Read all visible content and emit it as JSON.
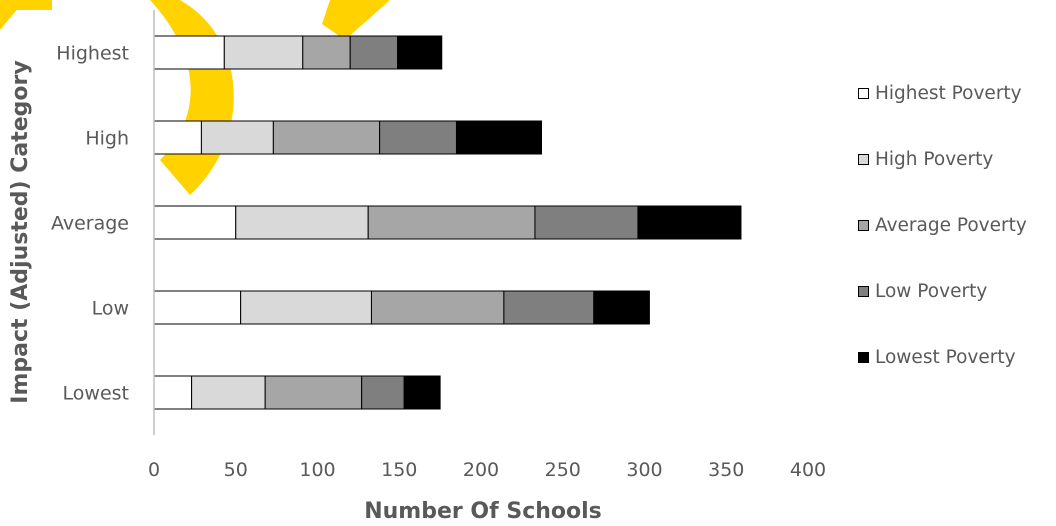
{
  "chart_data": {
    "type": "bar",
    "orientation": "horizontal",
    "stacked": true,
    "xlabel": "Number Of Schools",
    "ylabel": "Impact (Adjusted) Category",
    "xlim": [
      0,
      400
    ],
    "xticks": [
      "0",
      "50",
      "100",
      "150",
      "200",
      "250",
      "300",
      "350",
      "400"
    ],
    "categories": [
      "Highest",
      "High",
      "Average",
      "Low",
      "Lowest"
    ],
    "grid": false,
    "legend_position": "right",
    "series": [
      {
        "name": "Highest Poverty",
        "color": "#ffffff",
        "values": [
          43,
          29,
          50,
          53,
          23
        ]
      },
      {
        "name": "High Poverty",
        "color": "#d9d9d9",
        "values": [
          48,
          44,
          81,
          80,
          45
        ]
      },
      {
        "name": "Average Poverty",
        "color": "#a6a6a6",
        "values": [
          29,
          65,
          102,
          81,
          59
        ]
      },
      {
        "name": "Low Poverty",
        "color": "#7f7f7f",
        "values": [
          29,
          47,
          63,
          55,
          26
        ]
      },
      {
        "name": "Lowest Poverty",
        "color": "#000000",
        "values": [
          27,
          52,
          63,
          34,
          22
        ]
      }
    ]
  }
}
